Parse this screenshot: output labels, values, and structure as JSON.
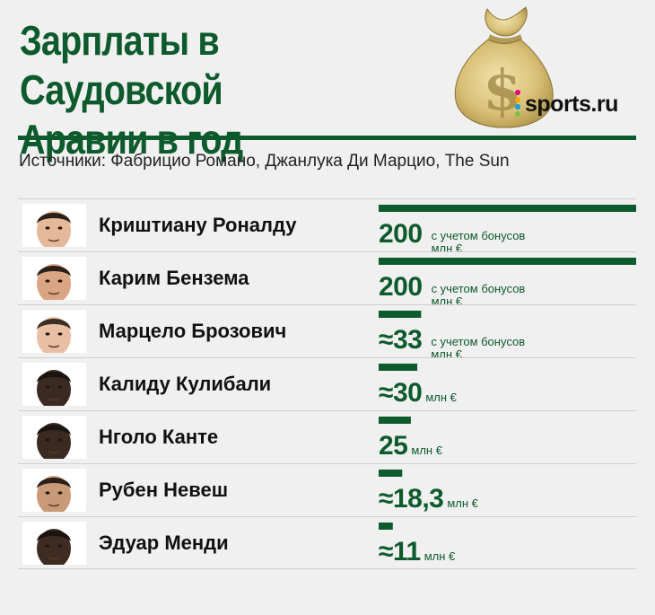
{
  "header": {
    "title_line1": "Зарплаты в Саудовской",
    "title_line2": "Аравии в год",
    "sources": "Источники: Фабрицио Романо, Джанлука Ди Марцио, The Sun",
    "logo": "sports.ru",
    "logo_dot_colors": [
      "#e6007e",
      "#f5a800",
      "#00a0e3",
      "#7ac142"
    ]
  },
  "colors": {
    "accent": "#0d5a2c",
    "background": "#f0f0f0",
    "bar": "#0d5a2c"
  },
  "chart_data": {
    "type": "bar",
    "orientation": "horizontal",
    "title": "Зарплаты в Саудовской Аравии в год",
    "unit": "млн €",
    "xlim": [
      0,
      200
    ],
    "categories": [
      "Криштиану Роналду",
      "Карим Бензема",
      "Марцело Брозович",
      "Калиду Кулибали",
      "Нголо Канте",
      "Рубен Невеш",
      "Эдуар Менди"
    ],
    "values": [
      200,
      200,
      33,
      30,
      25,
      18.3,
      11
    ],
    "labels": [
      "200",
      "200",
      "≈33",
      "≈30",
      "25",
      "≈18,3",
      "≈11"
    ],
    "notes": [
      "с учетом бонусов",
      "с учетом бонусов",
      "с учетом бонусов",
      "",
      "",
      "",
      ""
    ]
  }
}
